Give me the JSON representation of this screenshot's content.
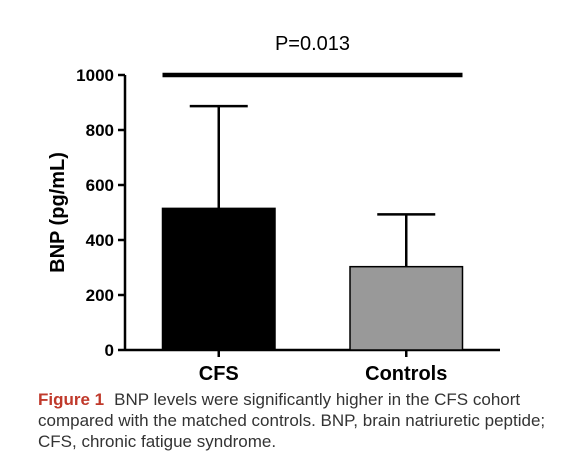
{
  "chart_data": {
    "type": "bar",
    "categories": [
      "CFS",
      "Controls"
    ],
    "values": [
      515,
      303
    ],
    "error_upper": [
      887,
      493
    ],
    "colors": [
      "#000000",
      "#999999"
    ],
    "ylabel": "BNP (pg/mL)",
    "ylim": [
      0,
      1000
    ],
    "yticks": [
      "0",
      "200",
      "400",
      "600",
      "800",
      "1000"
    ],
    "significance": "P=0.013",
    "significance_level": 1000,
    "grid": false
  },
  "caption": {
    "label": "Figure 1",
    "text": "BNP levels were significantly higher in the CFS cohort compared with the matched controls. BNP, brain natriuretic peptide; CFS, chronic fatigue syndrome."
  }
}
